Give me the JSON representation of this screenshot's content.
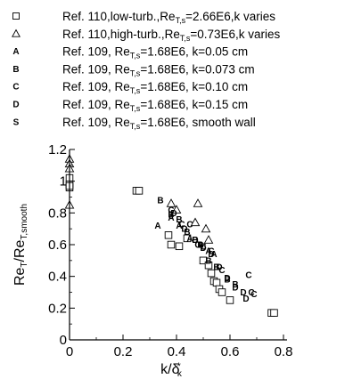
{
  "chart_data": {
    "type": "scatter",
    "xlabel": {
      "main": "k/δ",
      "sub": "k",
      "sup": "*"
    },
    "ylabel": {
      "main1": "Re",
      "sub1": "T",
      "main2": "/Re",
      "sub2": "T,smooth"
    },
    "xlim": [
      0,
      0.8
    ],
    "ylim": [
      0,
      1.2
    ],
    "x_ticks": [
      0,
      0.2,
      0.4,
      0.6,
      0.8
    ],
    "x_tick_labels": [
      "0",
      "0.2",
      "0.4",
      "0.6",
      "0.8"
    ],
    "y_ticks": [
      0,
      0.2,
      0.4,
      0.6,
      0.8,
      1.0,
      1.2
    ],
    "y_tick_labels": [
      "0",
      "0.2",
      "0.4",
      "0.6",
      "0.8",
      "1",
      "1.2"
    ],
    "grid": false,
    "legend_position": "top",
    "series": [
      {
        "name": "Ref. 110,low-turb.,Re_T,s=2.66E6,k varies",
        "label_parts": {
          "a": "Ref. 110,low-turb.,Re",
          "sub": "T,s",
          "b": "=2.66E6,k varies"
        },
        "marker": "square",
        "points": [
          [
            0.25,
            0.94
          ],
          [
            0.26,
            0.94
          ],
          [
            0.37,
            0.66
          ],
          [
            0.38,
            0.6
          ],
          [
            0.41,
            0.59
          ],
          [
            0.44,
            0.64
          ],
          [
            0.5,
            0.5
          ],
          [
            0.52,
            0.47
          ],
          [
            0.53,
            0.42
          ],
          [
            0.54,
            0.37
          ],
          [
            0.55,
            0.36
          ],
          [
            0.56,
            0.32
          ],
          [
            0.57,
            0.3
          ],
          [
            0.6,
            0.25
          ],
          [
            0.755,
            0.17
          ],
          [
            0.765,
            0.17
          ],
          [
            0.0,
            1.02
          ],
          [
            0.0,
            0.98
          ],
          [
            0.0,
            0.96
          ],
          [
            0.0,
            0.97
          ]
        ]
      },
      {
        "name": "Ref. 110,high-turb.,Re_T,s=0.73E6,k varies",
        "label_parts": {
          "a": "Ref. 110,high-turb.,Re",
          "sub": "T,s",
          "b": "=0.73E6,k varies"
        },
        "marker": "triangle",
        "points": [
          [
            0.38,
            0.86
          ],
          [
            0.4,
            0.82
          ],
          [
            0.47,
            0.74
          ],
          [
            0.48,
            0.86
          ],
          [
            0.51,
            0.7
          ],
          [
            0.52,
            0.63
          ],
          [
            0.0,
            1.14
          ],
          [
            0.0,
            1.11
          ],
          [
            0.0,
            1.08
          ],
          [
            0.0,
            0.85
          ]
        ]
      },
      {
        "name": "Ref. 109, Re_T,s=1.68E6, k=0.05 cm",
        "label_parts": {
          "a": "Ref. 109, Re",
          "sub": "T,s",
          "b": "=1.68E6, k=0.05 cm"
        },
        "marker": "letter",
        "letter": "A",
        "points": [
          [
            0.33,
            0.72
          ],
          [
            0.38,
            0.77
          ],
          [
            0.41,
            0.72
          ],
          [
            0.45,
            0.64
          ],
          [
            0.49,
            0.6
          ],
          [
            0.52,
            0.56
          ],
          [
            0.54,
            0.54
          ]
        ]
      },
      {
        "name": "Ref. 109, Re_T,s=1.68E6, k=0.073 cm",
        "label_parts": {
          "a": "Ref. 109, Re",
          "sub": "T,s",
          "b": "=1.68E6, k=0.073 cm"
        },
        "marker": "letter",
        "letter": "B",
        "points": [
          [
            0.34,
            0.88
          ],
          [
            0.38,
            0.79
          ],
          [
            0.41,
            0.76
          ],
          [
            0.44,
            0.68
          ],
          [
            0.47,
            0.63
          ],
          [
            0.49,
            0.6
          ],
          [
            0.52,
            0.5
          ],
          [
            0.55,
            0.46
          ],
          [
            0.59,
            0.38
          ],
          [
            0.62,
            0.35
          ]
        ]
      },
      {
        "name": "Ref. 109, Re_T,s=1.68E6, k=0.10 cm",
        "label_parts": {
          "a": "Ref. 109, Re",
          "sub": "T,s",
          "b": "=1.68E6, k=0.10 cm"
        },
        "marker": "letter",
        "letter": "C",
        "points": [
          [
            0.38,
            0.82
          ],
          [
            0.42,
            0.73
          ],
          [
            0.45,
            0.73
          ],
          [
            0.48,
            0.6
          ],
          [
            0.5,
            0.59
          ],
          [
            0.53,
            0.56
          ],
          [
            0.57,
            0.44
          ],
          [
            0.67,
            0.41
          ],
          [
            0.68,
            0.3
          ],
          [
            0.69,
            0.29
          ]
        ]
      },
      {
        "name": "Ref. 109, Re_T,s=1.68E6, k=0.15 cm",
        "label_parts": {
          "a": "Ref. 109, Re",
          "sub": "T,s",
          "b": "=1.68E6, k=0.15 cm"
        },
        "marker": "letter",
        "letter": "D",
        "points": [
          [
            0.39,
            0.8
          ],
          [
            0.43,
            0.7
          ],
          [
            0.47,
            0.63
          ],
          [
            0.5,
            0.58
          ],
          [
            0.53,
            0.54
          ],
          [
            0.56,
            0.46
          ],
          [
            0.59,
            0.39
          ],
          [
            0.62,
            0.33
          ],
          [
            0.65,
            0.3
          ],
          [
            0.66,
            0.26
          ]
        ]
      },
      {
        "name": "Ref. 109, Re_T,s=1.68E6, smooth wall",
        "label_parts": {
          "a": "Ref. 109, Re",
          "sub": "T,s",
          "b": "=1.68E6, smooth wall"
        },
        "marker": "letter",
        "letter": "S",
        "points": []
      }
    ]
  }
}
